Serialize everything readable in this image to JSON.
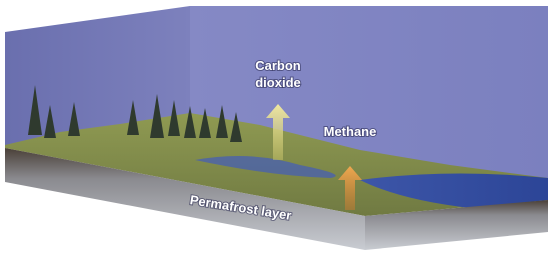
{
  "labels": {
    "carbon_dioxide": [
      "Carbon",
      "dioxide"
    ],
    "methane": "Methane",
    "permafrost": "Permafrost layer"
  }
}
